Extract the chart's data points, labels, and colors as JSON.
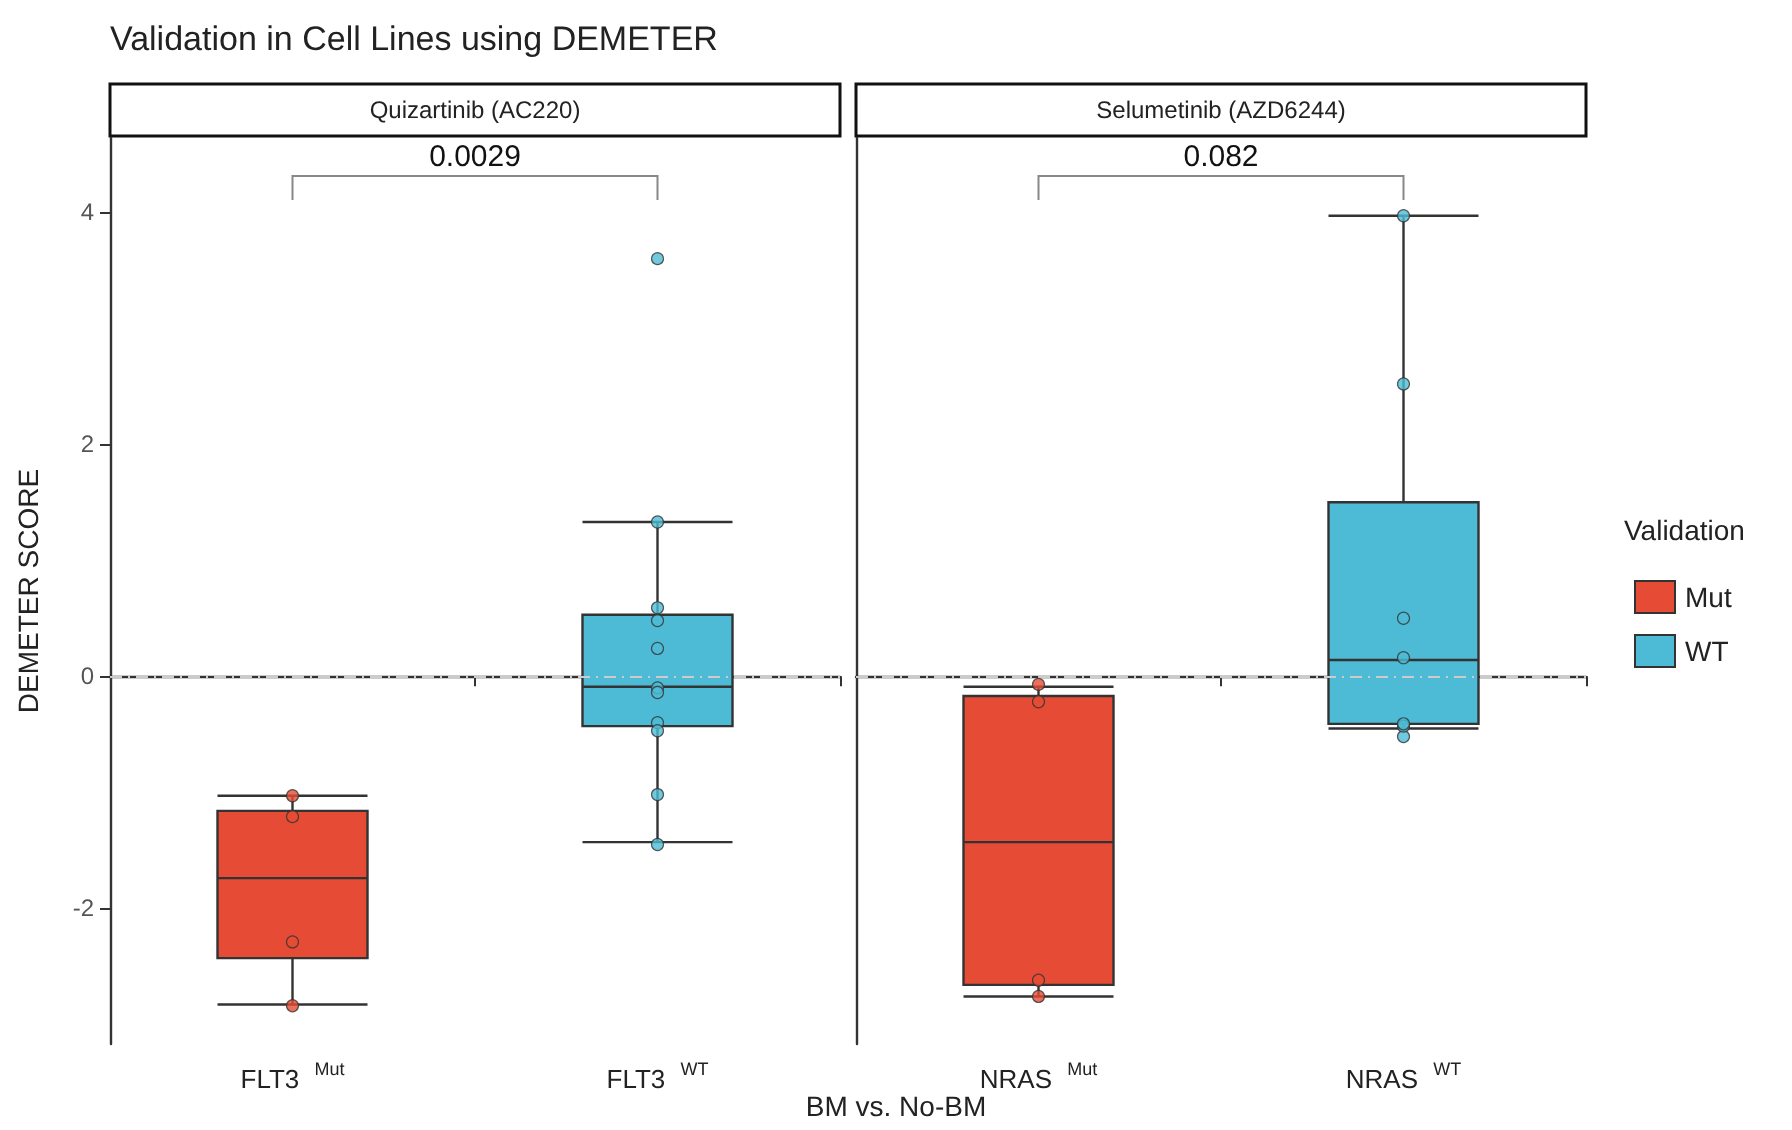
{
  "chart_data": [
    {
      "type": "box",
      "title": "Validation in Cell Lines using DEMETER",
      "subtitle": "Quizartinib (AC220)",
      "xlabel": "BM vs. No-BM",
      "ylabel": "DEMETER SCORE",
      "categories": [
        "FLT3 $^{Mut}$",
        "FLT3 $^{WT}$"
      ],
      "ylim": [
        -3.17,
        4.64
      ],
      "yticks": [
        -2,
        0,
        2,
        4
      ],
      "grid": false,
      "legend": false,
      "series": [
        {
          "color": "#e64b35",
          "boxes": [
            {
              "low": -2.83,
              "q1": -2.43,
              "median": -1.74,
              "q3": -1.16,
              "high": -1.03
            },
            null
          ]
        },
        {
          "color": "#4dbbd5",
          "boxes": [
            null,
            {
              "low": -1.43,
              "q1": -0.43,
              "median": -0.09,
              "q3": 0.53,
              "high": 1.33
            }
          ]
        },
        {
          "type": "scatter",
          "color": "#e64b35",
          "x": [
            "FLT3 $^{Mut}$",
            "FLT3 $^{Mut}$",
            "FLT3 $^{Mut}$",
            "FLT3 $^{Mut}$"
          ],
          "values": [
            -1.03,
            -1.21,
            -2.29,
            -2.84
          ]
        },
        {
          "type": "scatter",
          "color": "#4dbbd5",
          "x": [
            "FLT3 $^{WT}$",
            "FLT3 $^{WT}$",
            "FLT3 $^{WT}$",
            "FLT3 $^{WT}$",
            "FLT3 $^{WT}$",
            "FLT3 $^{WT}$",
            "FLT3 $^{WT}$",
            "FLT3 $^{WT}$",
            "FLT3 $^{WT}$",
            "FLT3 $^{WT}$",
            "FLT3 $^{WT}$"
          ],
          "values": [
            3.6,
            1.33,
            0.59,
            0.48,
            0.24,
            -0.1,
            -0.14,
            -0.4,
            -0.47,
            -1.02,
            -1.45
          ]
        }
      ],
      "ref_lines": [
        {
          "axis": "y",
          "value": 0,
          "color": "#cccccc",
          "line_style": "dashed"
        }
      ],
      "annotations": [
        "0.0029"
      ]
    },
    {
      "type": "box",
      "subtitle": "Selumetinib (AZD6244)",
      "legend_title": "Validation",
      "categories": [
        "NRAS $^{Mut}$",
        "NRAS $^{WT}$"
      ],
      "ylim": [
        -3.17,
        4.64
      ],
      "yticks": [
        -2,
        0,
        2,
        4
      ],
      "tick_labels": "x",
      "grid": false,
      "legend": "right",
      "series": [
        {
          "name": "Mut",
          "color": "#e64b35",
          "boxes": [
            {
              "low": -2.76,
              "q1": -2.66,
              "median": -1.43,
              "q3": -0.17,
              "high": -0.09
            },
            null
          ]
        },
        {
          "name": "WT",
          "color": "#4dbbd5",
          "boxes": [
            null,
            {
              "low": -0.45,
              "q1": -0.41,
              "median": 0.14,
              "q3": 1.5,
              "high": 3.97
            }
          ]
        },
        {
          "type": "scatter",
          "color": "#e64b35",
          "x": [
            "NRAS $^{Mut}$",
            "NRAS $^{Mut}$",
            "NRAS $^{Mut}$",
            "NRAS $^{Mut}$"
          ],
          "values": [
            -0.07,
            -0.22,
            -2.62,
            -2.76
          ]
        },
        {
          "type": "scatter",
          "color": "#4dbbd5",
          "x": [
            "NRAS $^{WT}$",
            "NRAS $^{WT}$",
            "NRAS $^{WT}$",
            "NRAS $^{WT}$",
            "NRAS $^{WT}$",
            "NRAS $^{WT}$",
            "NRAS $^{WT}$"
          ],
          "values": [
            3.97,
            2.52,
            0.5,
            0.16,
            -0.52,
            -0.43,
            -0.41
          ]
        }
      ],
      "ref_lines": [
        {
          "axis": "y",
          "value": 0,
          "color": "#cccccc",
          "line_style": "dashed"
        }
      ],
      "annotations": [
        "0.082"
      ]
    }
  ]
}
